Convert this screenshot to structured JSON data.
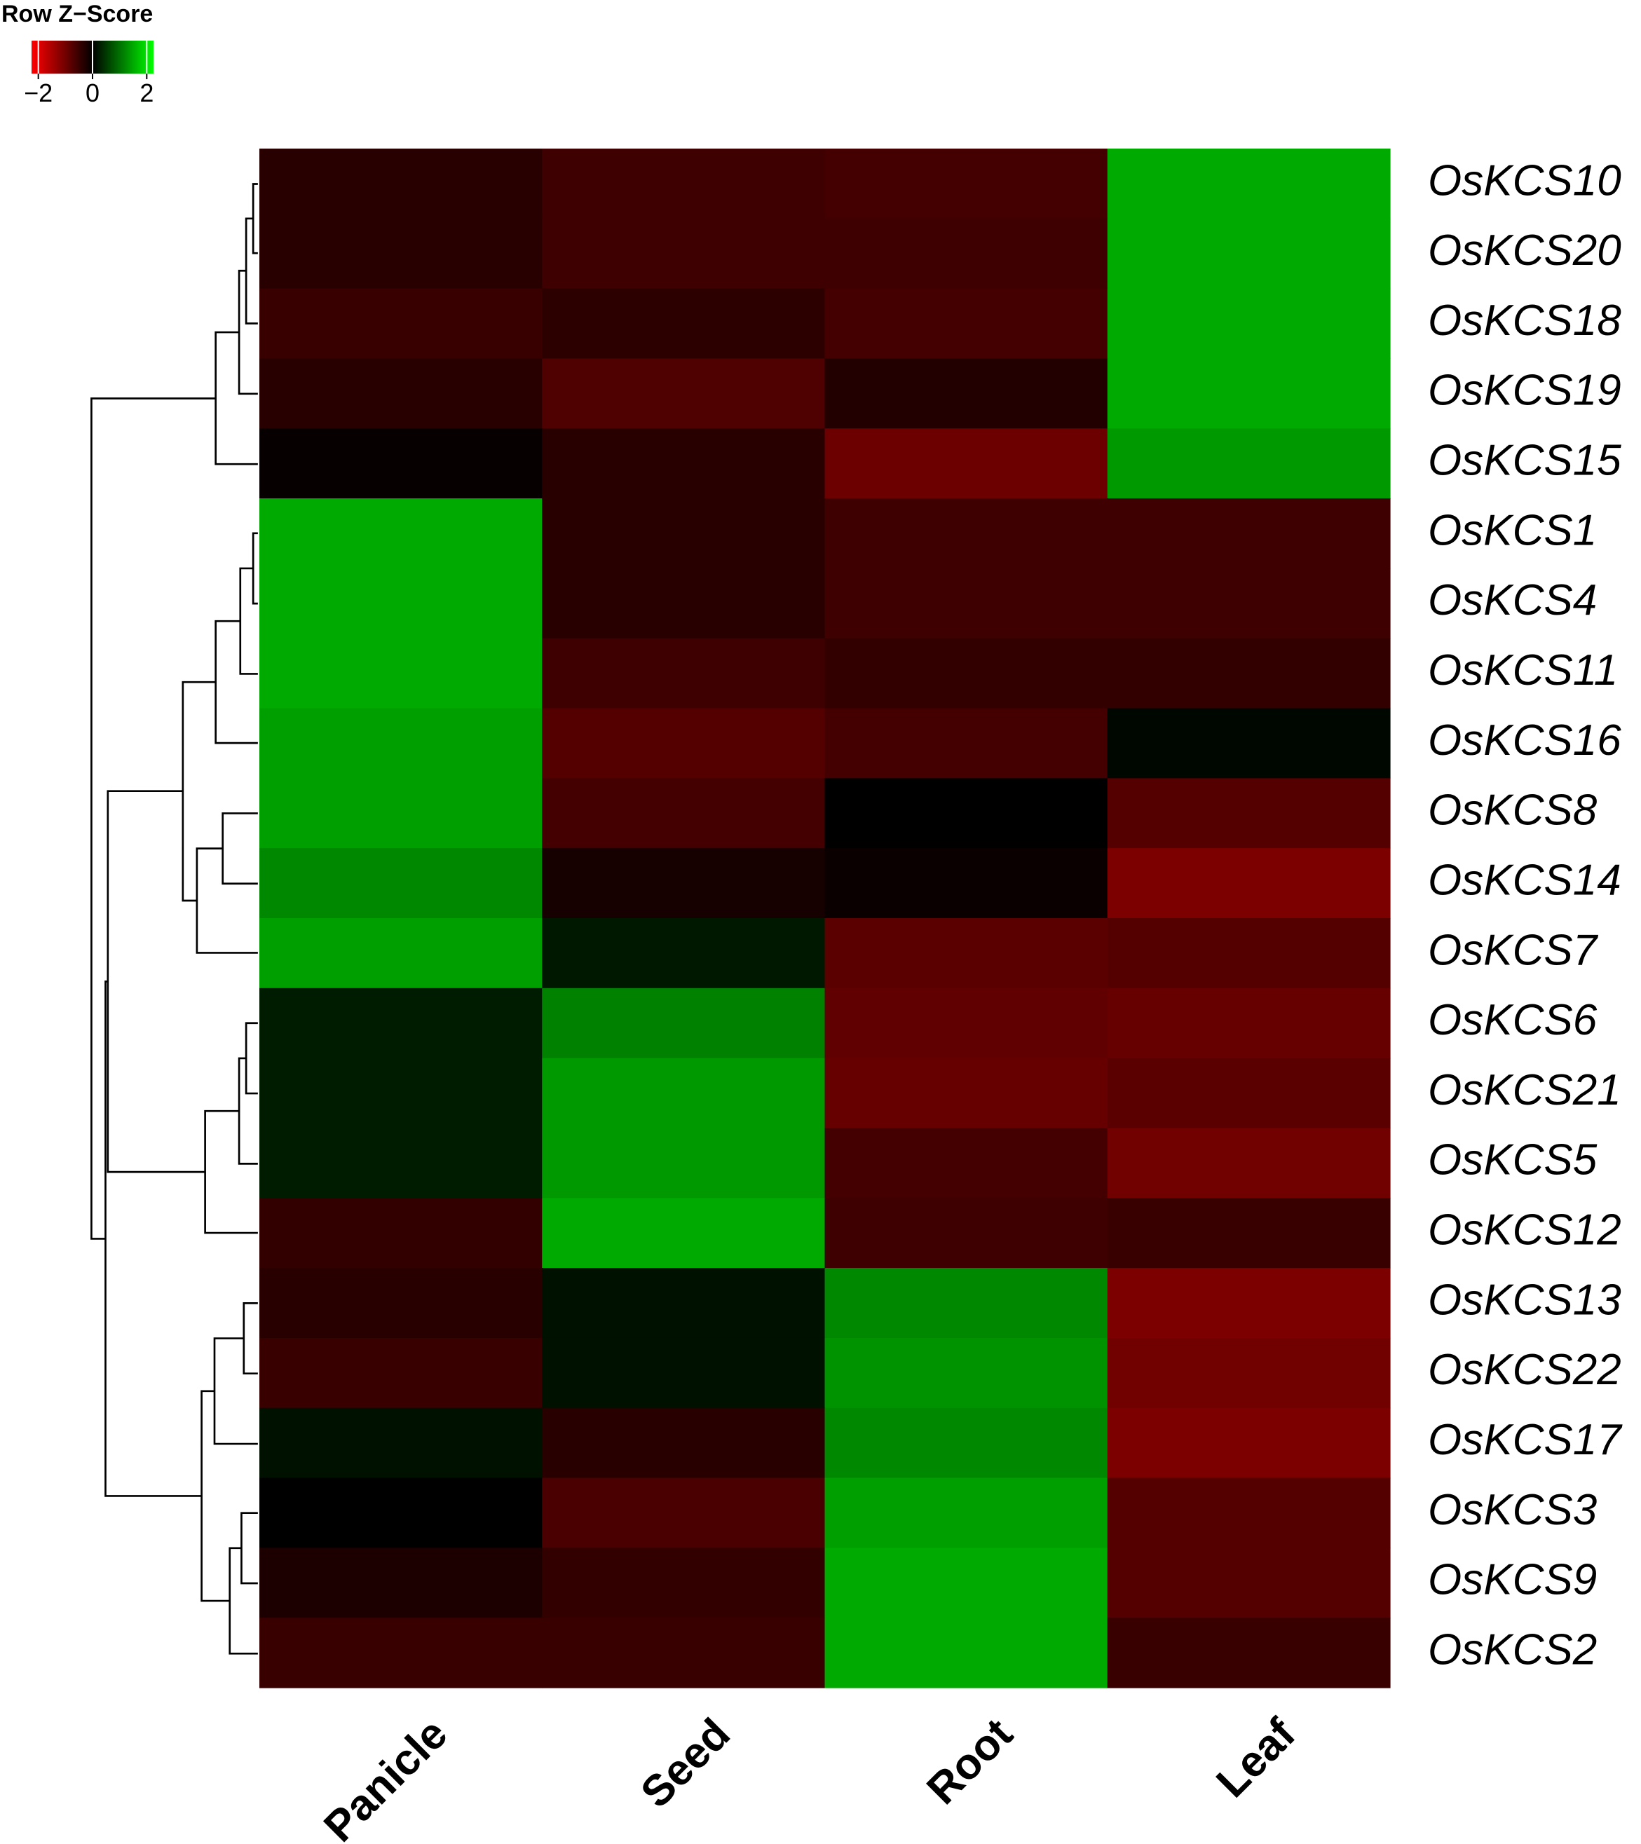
{
  "chart_data": {
    "type": "heatmap",
    "columns": [
      "Panicle",
      "Seed",
      "Root",
      "Leaf"
    ],
    "rows": [
      "OsKCS10",
      "OsKCS20",
      "OsKCS18",
      "OsKCS19",
      "OsKCS15",
      "OsKCS1",
      "OsKCS4",
      "OsKCS11",
      "OsKCS16",
      "OsKCS8",
      "OsKCS14",
      "OsKCS7",
      "OsKCS6",
      "OsKCS21",
      "OsKCS5",
      "OsKCS12",
      "OsKCS13",
      "OsKCS22",
      "OsKCS17",
      "OsKCS3",
      "OsKCS9",
      "OsKCS2"
    ],
    "values": [
      [
        -0.35,
        -0.55,
        -0.6,
        1.5
      ],
      [
        -0.35,
        -0.55,
        -0.55,
        1.5
      ],
      [
        -0.5,
        -0.4,
        -0.6,
        1.5
      ],
      [
        -0.35,
        -0.7,
        -0.3,
        1.5
      ],
      [
        -0.05,
        -0.35,
        -0.95,
        1.35
      ],
      [
        1.5,
        -0.35,
        -0.55,
        -0.55
      ],
      [
        1.5,
        -0.35,
        -0.55,
        -0.55
      ],
      [
        1.5,
        -0.55,
        -0.45,
        -0.45
      ],
      [
        1.4,
        -0.75,
        -0.6,
        0.05
      ],
      [
        1.4,
        -0.6,
        0,
        -0.75
      ],
      [
        1.2,
        -0.2,
        -0.1,
        -1.1
      ],
      [
        1.4,
        0.2,
        -0.8,
        -0.75
      ],
      [
        0.25,
        1.15,
        -0.85,
        -0.9
      ],
      [
        0.25,
        1.35,
        -0.9,
        -0.8
      ],
      [
        0.25,
        1.35,
        -0.6,
        -1.0
      ],
      [
        -0.45,
        1.5,
        -0.55,
        -0.5
      ],
      [
        -0.35,
        0.15,
        1.2,
        -1.1
      ],
      [
        -0.5,
        0.15,
        1.3,
        -1.0
      ],
      [
        0.15,
        -0.35,
        1.2,
        -1.1
      ],
      [
        0,
        -0.65,
        1.4,
        -0.75
      ],
      [
        -0.25,
        -0.45,
        1.5,
        -0.75
      ],
      [
        -0.5,
        -0.5,
        1.5,
        -0.5
      ]
    ],
    "colorbar": {
      "title": "Row Z−Score",
      "range": [
        -2.25,
        2.25
      ],
      "ticks": [
        {
          "value": -2,
          "label": "−2"
        },
        0,
        2
      ],
      "colors": [
        "#ff0000",
        "#000000",
        "#00ff00"
      ]
    }
  }
}
